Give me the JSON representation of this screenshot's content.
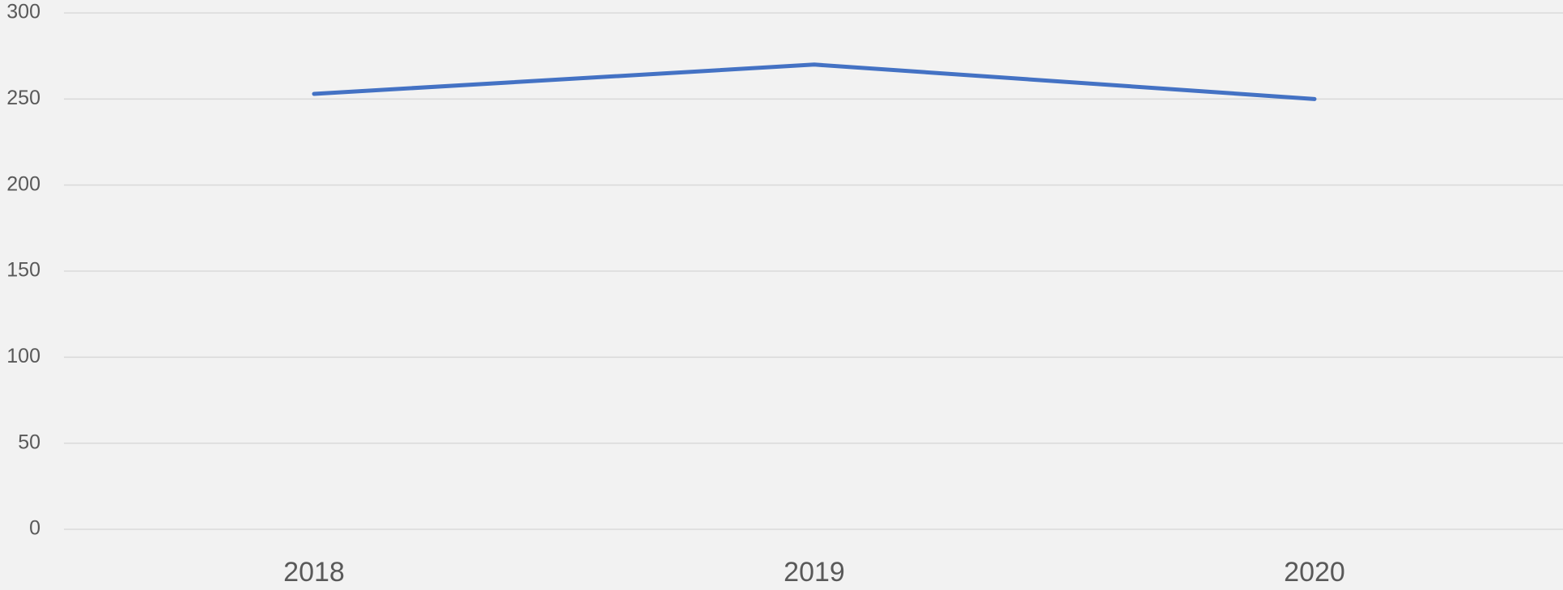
{
  "chart_data": {
    "type": "line",
    "categories": [
      "2018",
      "2019",
      "2020"
    ],
    "series": [
      {
        "color": "#4472c4",
        "values": [
          253,
          270,
          250
        ]
      }
    ],
    "ylim": [
      0,
      300
    ],
    "yticks": [
      0,
      50,
      100,
      150,
      200,
      250,
      300
    ],
    "grid": true
  }
}
